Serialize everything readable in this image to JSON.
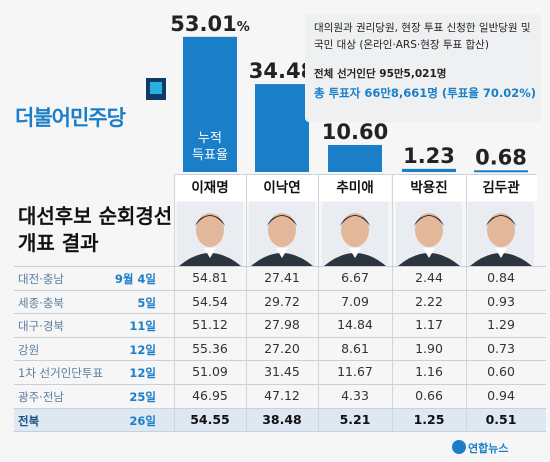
{
  "chart_data": {
    "type": "bar",
    "title": "대선후보 순회경선 개표 결과",
    "categories": [
      "이재명",
      "이낙연",
      "추미애",
      "박용진",
      "김두관"
    ],
    "values": [
      53.01,
      34.48,
      10.6,
      1.23,
      0.68
    ],
    "value_labels": [
      "53.01%",
      "34.48",
      "10.60",
      "1.23",
      "0.68"
    ],
    "bar_inner_label": [
      "누적",
      "득표율"
    ],
    "ylim": [
      0,
      60
    ],
    "color": "#1a7fc8"
  },
  "party_logo": "더불어민주당",
  "info": {
    "note": "대의원과 권리당원, 현장 투표 신청한 일반당원 및 국민 대상 (온라인·ARS·현장 투표 합산)",
    "electors": "전체 선거인단 95만5,021명",
    "voters": "총 투표자 66만8,661명 (투표율 70.02%)"
  },
  "title_line1": "대선후보 순회경선",
  "title_line2": "개표 결과",
  "table": {
    "rows": [
      {
        "region": "대전·충남",
        "date": "9월 4일",
        "values": [
          "54.81",
          "27.41",
          "6.67",
          "2.44",
          "0.84"
        ]
      },
      {
        "region": "세종·충북",
        "date": "5일",
        "values": [
          "54.54",
          "29.72",
          "7.09",
          "2.22",
          "0.93"
        ]
      },
      {
        "region": "대구·경북",
        "date": "11일",
        "values": [
          "51.12",
          "27.98",
          "14.84",
          "1.17",
          "1.29"
        ]
      },
      {
        "region": "강원",
        "date": "12일",
        "values": [
          "55.36",
          "27.20",
          "8.61",
          "1.90",
          "0.73"
        ]
      },
      {
        "region": "1차 선거인단투표",
        "date": "12일",
        "values": [
          "51.09",
          "31.45",
          "11.67",
          "1.16",
          "0.60"
        ]
      },
      {
        "region": "광주·전남",
        "date": "25일",
        "values": [
          "46.95",
          "47.12",
          "4.33",
          "0.66",
          "0.94"
        ]
      },
      {
        "region": "전북",
        "date": "26일",
        "values": [
          "54.55",
          "38.48",
          "5.21",
          "1.25",
          "0.51"
        ]
      }
    ]
  },
  "source": "연합뉴스",
  "colors": {
    "accent": "#1a7fc8",
    "highlight_row": "#dde8f2"
  }
}
